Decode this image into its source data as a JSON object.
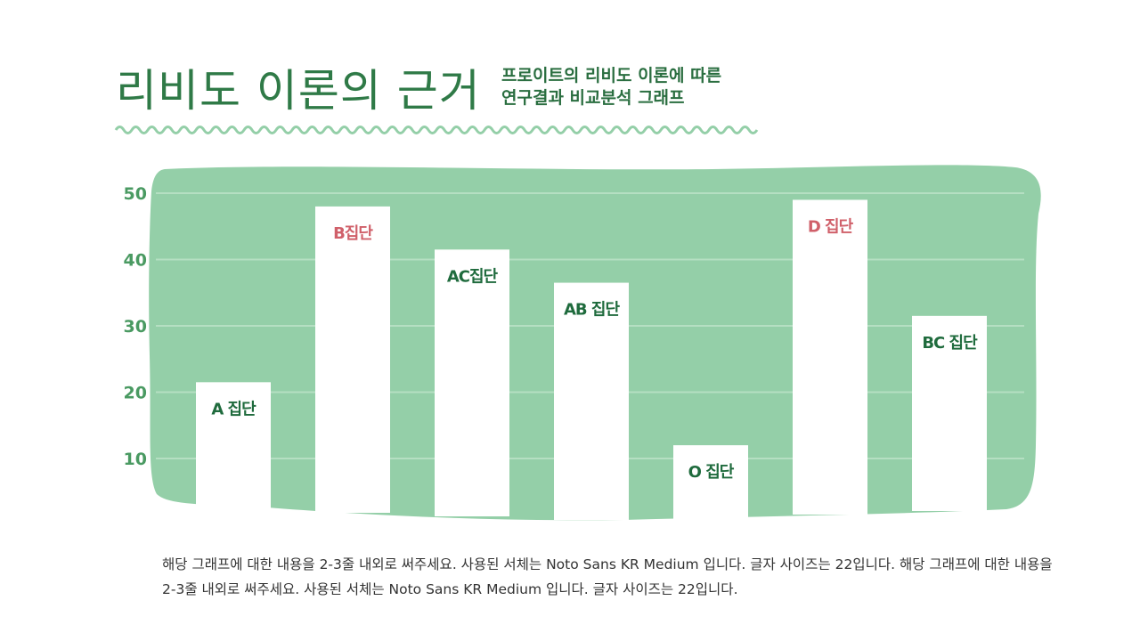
{
  "header": {
    "title": "리비도 이론의 근거",
    "subtitle_line1": "프로이트의 리비도 이론에 따른",
    "subtitle_line2": "연구결과 비교분석 그래프"
  },
  "colors": {
    "title": "#2f7a47",
    "background_blob": "#94cfa8",
    "wave": "#94cfa8",
    "bar": "#ffffff",
    "label_default": "#1f6b3d",
    "label_highlight": "#d0606a",
    "tick_label": "#4a9a62"
  },
  "chart_data": {
    "type": "bar",
    "categories": [
      "A 집단",
      "B집단",
      "AC집단",
      "AB 집단",
      "O 집단",
      "D 집단",
      "BC 집단"
    ],
    "values": [
      21.5,
      48,
      41.5,
      36.5,
      12,
      49,
      31.5
    ],
    "highlighted": [
      "B집단",
      "D 집단"
    ],
    "yticks": [
      "10",
      "20",
      "30",
      "40",
      "50"
    ],
    "ylim": [
      0,
      50
    ],
    "grid": true,
    "title": "",
    "xlabel": "",
    "ylabel": ""
  },
  "description": "해당 그래프에 대한 내용을 2-3줄 내외로 써주세요. 사용된 서체는 Noto Sans KR Medium 입니다. 글자 사이즈는 22입니다. 해당 그래프에 대한 내용을 2-3줄 내외로 써주세요. 사용된 서체는 Noto Sans KR Medium 입니다. 글자 사이즈는 22입니다."
}
